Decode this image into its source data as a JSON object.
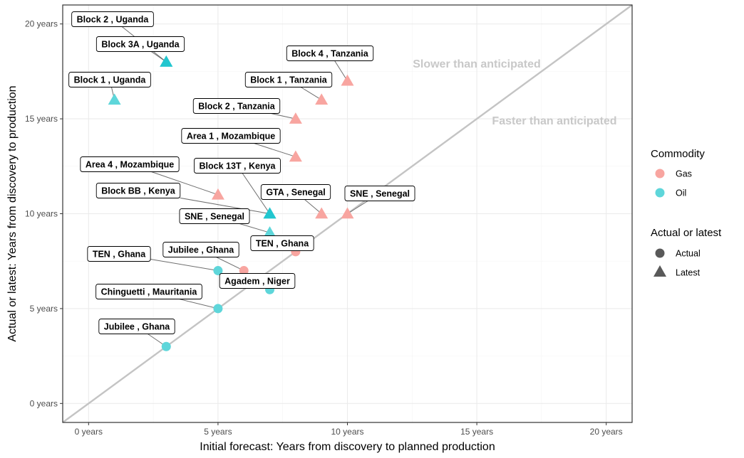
{
  "chart_data": {
    "type": "scatter",
    "xlabel": "Initial forecast: Years from discovery to planned production",
    "ylabel": "Actual or latest: Years from discovery to production",
    "xlim": [
      -1,
      21
    ],
    "ylim": [
      -1,
      21
    ],
    "x_ticks": [
      "0 years",
      "5 years",
      "10 years",
      "15 years",
      "20 years"
    ],
    "y_ticks": [
      "0 years",
      "5 years",
      "10 years",
      "15 years",
      "20 years"
    ],
    "grid": true,
    "reference_line": "y = x",
    "annotations": [
      {
        "text": "Slower than anticipated",
        "position": "above diagonal"
      },
      {
        "text": "Faster than anticipated",
        "position": "below diagonal"
      }
    ],
    "legend": {
      "position": "right",
      "commodity": {
        "title": "Commodity",
        "items": [
          {
            "label": "Gas",
            "color": "#F8A5A0"
          },
          {
            "label": "Oil",
            "color": "#5ED6DA"
          }
        ]
      },
      "status": {
        "title": "Actual or latest",
        "items": [
          {
            "label": "Actual",
            "shape": "circle"
          },
          {
            "label": "Latest",
            "shape": "triangle"
          }
        ]
      }
    },
    "colors": {
      "Gas": "#F8A5A0",
      "Oil": "#5ED6DA",
      "OilDark": "#22C6CF",
      "diagonal": "#C4C4C4"
    },
    "points": [
      {
        "label": "Block 2 , Uganda",
        "x": 3,
        "y": 18,
        "commodity": "Oil",
        "status": "Latest"
      },
      {
        "label": "Block 3A , Uganda",
        "x": 3,
        "y": 18,
        "commodity": "Oil",
        "status": "Latest"
      },
      {
        "label": "Block 1 , Uganda",
        "x": 1,
        "y": 16,
        "commodity": "Oil",
        "status": "Latest"
      },
      {
        "label": "Block 4 , Tanzania",
        "x": 10,
        "y": 17,
        "commodity": "Gas",
        "status": "Latest"
      },
      {
        "label": "Block 1 , Tanzania",
        "x": 9,
        "y": 16,
        "commodity": "Gas",
        "status": "Latest"
      },
      {
        "label": "Block 2 , Tanzania",
        "x": 8,
        "y": 15,
        "commodity": "Gas",
        "status": "Latest"
      },
      {
        "label": "Area 1 , Mozambique",
        "x": 8,
        "y": 13,
        "commodity": "Gas",
        "status": "Latest"
      },
      {
        "label": "Area 4 , Mozambique",
        "x": 5,
        "y": 11,
        "commodity": "Gas",
        "status": "Latest"
      },
      {
        "label": "Block 13T , Kenya",
        "x": 7,
        "y": 10,
        "commodity": "Oil",
        "status": "Latest"
      },
      {
        "label": "Block BB , Kenya",
        "x": 7,
        "y": 10,
        "commodity": "Oil",
        "status": "Latest"
      },
      {
        "label": "GTA , Senegal",
        "x": 9,
        "y": 10,
        "commodity": "Gas",
        "status": "Latest"
      },
      {
        "label": "SNE , Senegal",
        "x": 10,
        "y": 10,
        "commodity": "Gas",
        "status": "Latest"
      },
      {
        "label": "SNE , Senegal",
        "x": 7,
        "y": 9,
        "commodity": "Oil",
        "status": "Latest"
      },
      {
        "label": "TEN , Ghana",
        "x": 8,
        "y": 8,
        "commodity": "Gas",
        "status": "Actual"
      },
      {
        "label": "TEN , Ghana",
        "x": 5,
        "y": 7,
        "commodity": "Oil",
        "status": "Actual"
      },
      {
        "label": "Jubilee , Ghana",
        "x": 6,
        "y": 7,
        "commodity": "Gas",
        "status": "Actual"
      },
      {
        "label": "Agadem , Niger",
        "x": 7,
        "y": 6,
        "commodity": "Oil",
        "status": "Actual"
      },
      {
        "label": "Chinguetti , Mauritania",
        "x": 5,
        "y": 5,
        "commodity": "Oil",
        "status": "Actual"
      },
      {
        "label": "Jubilee , Ghana",
        "x": 3,
        "y": 3,
        "commodity": "Oil",
        "status": "Actual"
      }
    ]
  }
}
